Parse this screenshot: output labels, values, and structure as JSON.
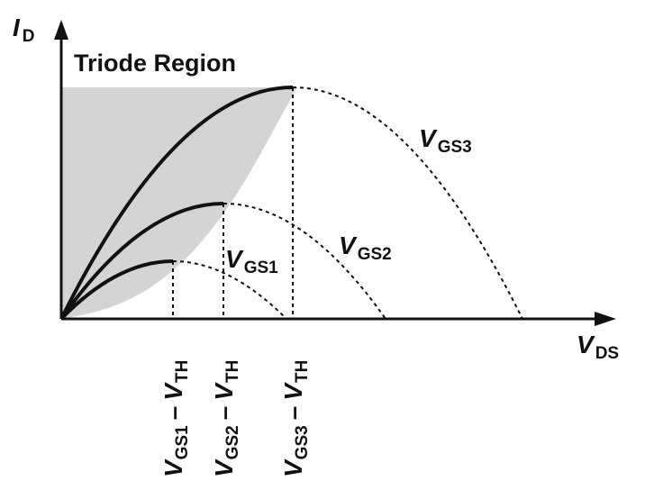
{
  "diagram": {
    "y_axis": {
      "symbol": "I",
      "subscript": "D"
    },
    "x_axis": {
      "symbol": "V",
      "subscript": "DS"
    },
    "region_label": "Triode Region",
    "curves": [
      {
        "symbol": "V",
        "subscript": "GS1"
      },
      {
        "symbol": "V",
        "subscript": "GS2"
      },
      {
        "symbol": "V",
        "subscript": "GS3"
      }
    ],
    "tick_labels": [
      {
        "v": "V",
        "gs": "GS1",
        "dash": "–",
        "vth": "V",
        "th": "TH"
      },
      {
        "v": "V",
        "gs": "GS2",
        "dash": "–",
        "vth": "V",
        "th": "TH"
      },
      {
        "v": "V",
        "gs": "GS3",
        "dash": "–",
        "vth": "V",
        "th": "TH"
      }
    ],
    "colors": {
      "triode_region": "#d4d4d4",
      "curve": "#111111"
    }
  }
}
